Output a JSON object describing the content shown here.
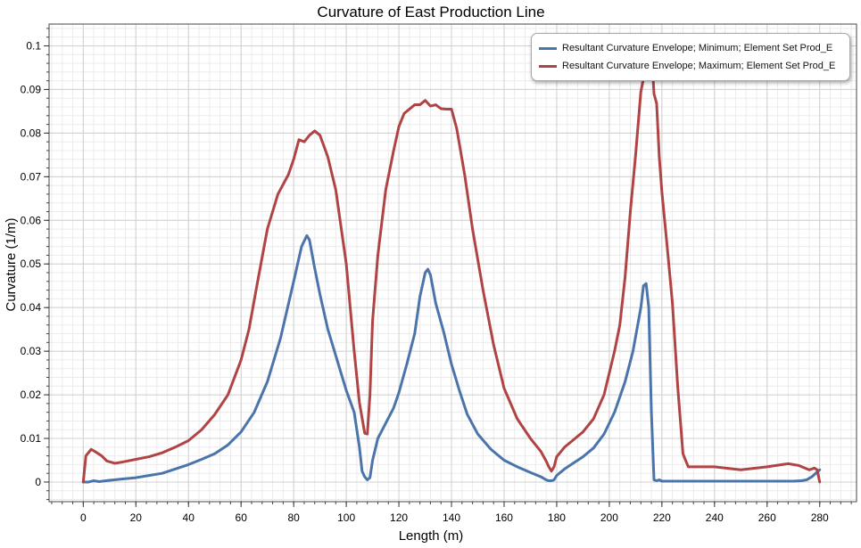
{
  "colors": {
    "min_series": "#4a74aa",
    "max_series": "#b04444",
    "grid_major": "#d0d0d0",
    "grid_minor": "#ebebeb"
  },
  "chart_data": {
    "type": "line",
    "title": "Curvature of East Production Line",
    "xlabel": "Length (m)",
    "ylabel": "Curvature (1/m)",
    "xlim": [
      -13,
      294
    ],
    "ylim": [
      -0.0045,
      0.105
    ],
    "xticks": [
      0,
      20,
      40,
      60,
      80,
      100,
      120,
      140,
      160,
      180,
      200,
      220,
      240,
      260,
      280
    ],
    "yticks": [
      0,
      0.01,
      0.02,
      0.03,
      0.04,
      0.05,
      0.06,
      0.07,
      0.08,
      0.09,
      0.1
    ],
    "ytick_labels": [
      "0",
      "0.01",
      "0.02",
      "0.03",
      "0.04",
      "0.05",
      "0.06",
      "0.07",
      "0.08",
      "0.09",
      "0.1"
    ],
    "grid": true,
    "legend_position": "top-right",
    "series": [
      {
        "name": "Resultant Curvature Envelope; Minimum; Element Set Prod_E",
        "x": [
          0,
          2,
          4,
          6,
          10,
          15,
          20,
          25,
          30,
          35,
          40,
          45,
          50,
          55,
          60,
          65,
          70,
          75,
          80,
          83,
          85,
          86,
          88,
          90,
          93,
          96,
          100,
          103,
          105,
          106,
          107,
          108,
          109,
          110,
          112,
          115,
          118,
          120,
          123,
          126,
          128,
          130,
          131,
          132,
          134,
          137,
          140,
          143,
          146,
          150,
          155,
          160,
          165,
          170,
          174,
          176,
          177,
          178,
          179,
          180,
          183,
          186,
          190,
          194,
          198,
          202,
          206,
          209,
          212,
          213,
          214,
          215,
          216,
          217,
          218,
          219,
          220,
          222,
          225,
          230,
          240,
          250,
          260,
          270,
          273,
          275,
          277,
          279,
          280
        ],
        "values": [
          0,
          0,
          0.0003,
          0.0001,
          0.0004,
          0.0007,
          0.001,
          0.0015,
          0.002,
          0.003,
          0.004,
          0.0052,
          0.0065,
          0.0085,
          0.0115,
          0.016,
          0.023,
          0.033,
          0.046,
          0.054,
          0.0565,
          0.0555,
          0.049,
          0.043,
          0.035,
          0.029,
          0.021,
          0.016,
          0.008,
          0.0025,
          0.0012,
          0.0005,
          0.001,
          0.005,
          0.01,
          0.0135,
          0.017,
          0.0205,
          0.027,
          0.034,
          0.0425,
          0.048,
          0.0488,
          0.0475,
          0.041,
          0.0345,
          0.027,
          0.021,
          0.0155,
          0.011,
          0.0075,
          0.005,
          0.0035,
          0.0022,
          0.0012,
          0.0005,
          0.0003,
          0.0003,
          0.0005,
          0.0015,
          0.003,
          0.0042,
          0.0058,
          0.0078,
          0.011,
          0.016,
          0.023,
          0.03,
          0.04,
          0.045,
          0.0455,
          0.04,
          0.016,
          0.0005,
          0.0003,
          0.0005,
          0.0002,
          0.0002,
          0.0002,
          0.0002,
          0.0002,
          0.0002,
          0.0002,
          0.0002,
          0.0003,
          0.0005,
          0.0012,
          0.0023,
          0.0028
        ]
      },
      {
        "name": "Resultant Curvature Envelope; Maximum; Element Set Prod_E",
        "x": [
          0,
          1,
          3,
          5,
          7,
          9,
          12,
          15,
          20,
          25,
          30,
          35,
          40,
          45,
          50,
          55,
          60,
          63,
          66,
          70,
          74,
          78,
          80,
          82,
          84,
          86,
          88,
          90,
          93,
          96,
          100,
          103,
          105,
          107,
          108,
          109,
          110,
          112,
          115,
          118,
          120,
          122,
          124,
          126,
          128,
          130,
          132,
          134,
          136,
          138,
          140,
          142,
          145,
          148,
          152,
          156,
          160,
          165,
          170,
          174,
          176,
          177,
          178,
          179,
          180,
          183,
          186,
          190,
          194,
          198,
          202,
          204,
          206,
          208,
          210,
          212,
          214,
          215,
          216,
          217,
          218,
          219,
          220,
          222,
          224,
          226,
          228,
          230,
          240,
          250,
          260,
          268,
          272,
          276,
          278,
          279,
          280
        ],
        "values": [
          0,
          0.006,
          0.0075,
          0.0068,
          0.006,
          0.0048,
          0.0043,
          0.0046,
          0.0052,
          0.0058,
          0.0067,
          0.008,
          0.0095,
          0.012,
          0.0155,
          0.02,
          0.028,
          0.035,
          0.045,
          0.058,
          0.066,
          0.0705,
          0.074,
          0.0785,
          0.078,
          0.0795,
          0.0805,
          0.0795,
          0.0745,
          0.067,
          0.05,
          0.03,
          0.0182,
          0.0112,
          0.011,
          0.02,
          0.037,
          0.052,
          0.067,
          0.076,
          0.0815,
          0.0845,
          0.0855,
          0.0865,
          0.0865,
          0.0875,
          0.0862,
          0.0865,
          0.0856,
          0.0855,
          0.0855,
          0.081,
          0.0705,
          0.058,
          0.044,
          0.0315,
          0.0215,
          0.0145,
          0.01,
          0.007,
          0.0048,
          0.0035,
          0.0025,
          0.0035,
          0.0058,
          0.008,
          0.0095,
          0.0115,
          0.0145,
          0.02,
          0.03,
          0.036,
          0.047,
          0.062,
          0.075,
          0.0895,
          0.0955,
          0.0985,
          0.1,
          0.089,
          0.0868,
          0.0745,
          0.0665,
          0.054,
          0.041,
          0.022,
          0.0065,
          0.0035,
          0.0035,
          0.0028,
          0.0035,
          0.0042,
          0.0038,
          0.0028,
          0.0032,
          0.0028,
          0
        ]
      }
    ]
  }
}
